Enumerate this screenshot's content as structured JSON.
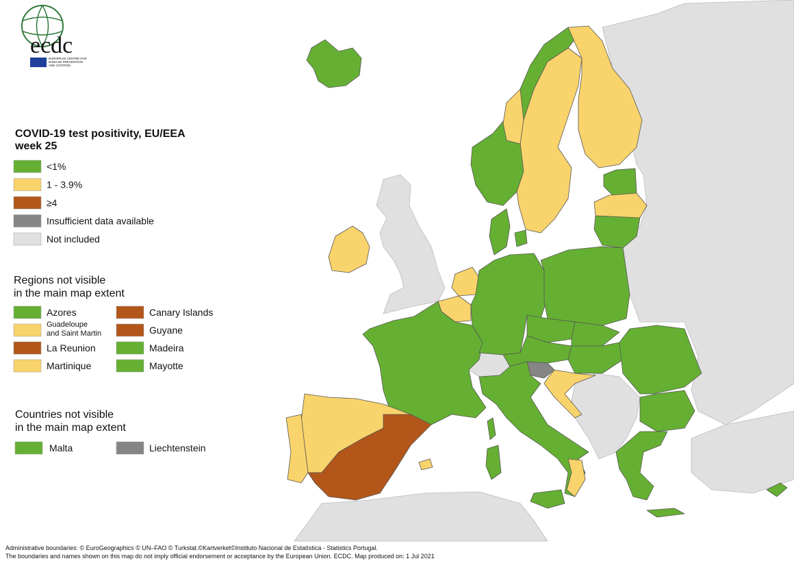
{
  "logo": {
    "name": "ecdc",
    "subtitle_lines": [
      "EUROPEAN CENTRE FOR",
      "DISEASE PREVENTION",
      "AND CONTROL"
    ]
  },
  "legend": {
    "title_lines": [
      "COVID-19 test positivity, EU/EEA",
      "week 25"
    ],
    "items": [
      {
        "label": "<1%",
        "color": "#65b032"
      },
      {
        "label": "1 - 3.9%",
        "color": "#f9d36b"
      },
      {
        "label": "≥4",
        "color": "#b3561a"
      },
      {
        "label": "Insufficient data available",
        "color": "#858585"
      },
      {
        "label": "Not included",
        "color": "#e0e0e0"
      }
    ]
  },
  "regions": {
    "title_lines": [
      "Regions not visible",
      "in the main map extent"
    ],
    "items": [
      {
        "label": "Azores",
        "category": 0
      },
      {
        "label": "Canary Islands",
        "category": 2
      },
      {
        "label": "Guadeloupe and Saint Martin",
        "category": 1
      },
      {
        "label": "Guyane",
        "category": 2
      },
      {
        "label": "La Reunion",
        "category": 2
      },
      {
        "label": "Madeira",
        "category": 0
      },
      {
        "label": "Martinique",
        "category": 1
      },
      {
        "label": "Mayotte",
        "category": 0
      }
    ]
  },
  "countries": {
    "title_lines": [
      "Countries not visible",
      "in the main map extent"
    ],
    "items": [
      {
        "label": "Malta",
        "category": 0
      },
      {
        "label": "Liechtenstein",
        "category": 3
      }
    ]
  },
  "footer": [
    "Administrative boundaries: © EuroGeographics © UN–FAO © Turkstat.©Kartverket©Instituto Nacional de Estatística - Statistics Portugal.",
    "The boundaries and names shown on this map do not imply official endorsement or acceptance by the European Union. ECDC. Map produced on: 1 Jul 2021"
  ]
}
